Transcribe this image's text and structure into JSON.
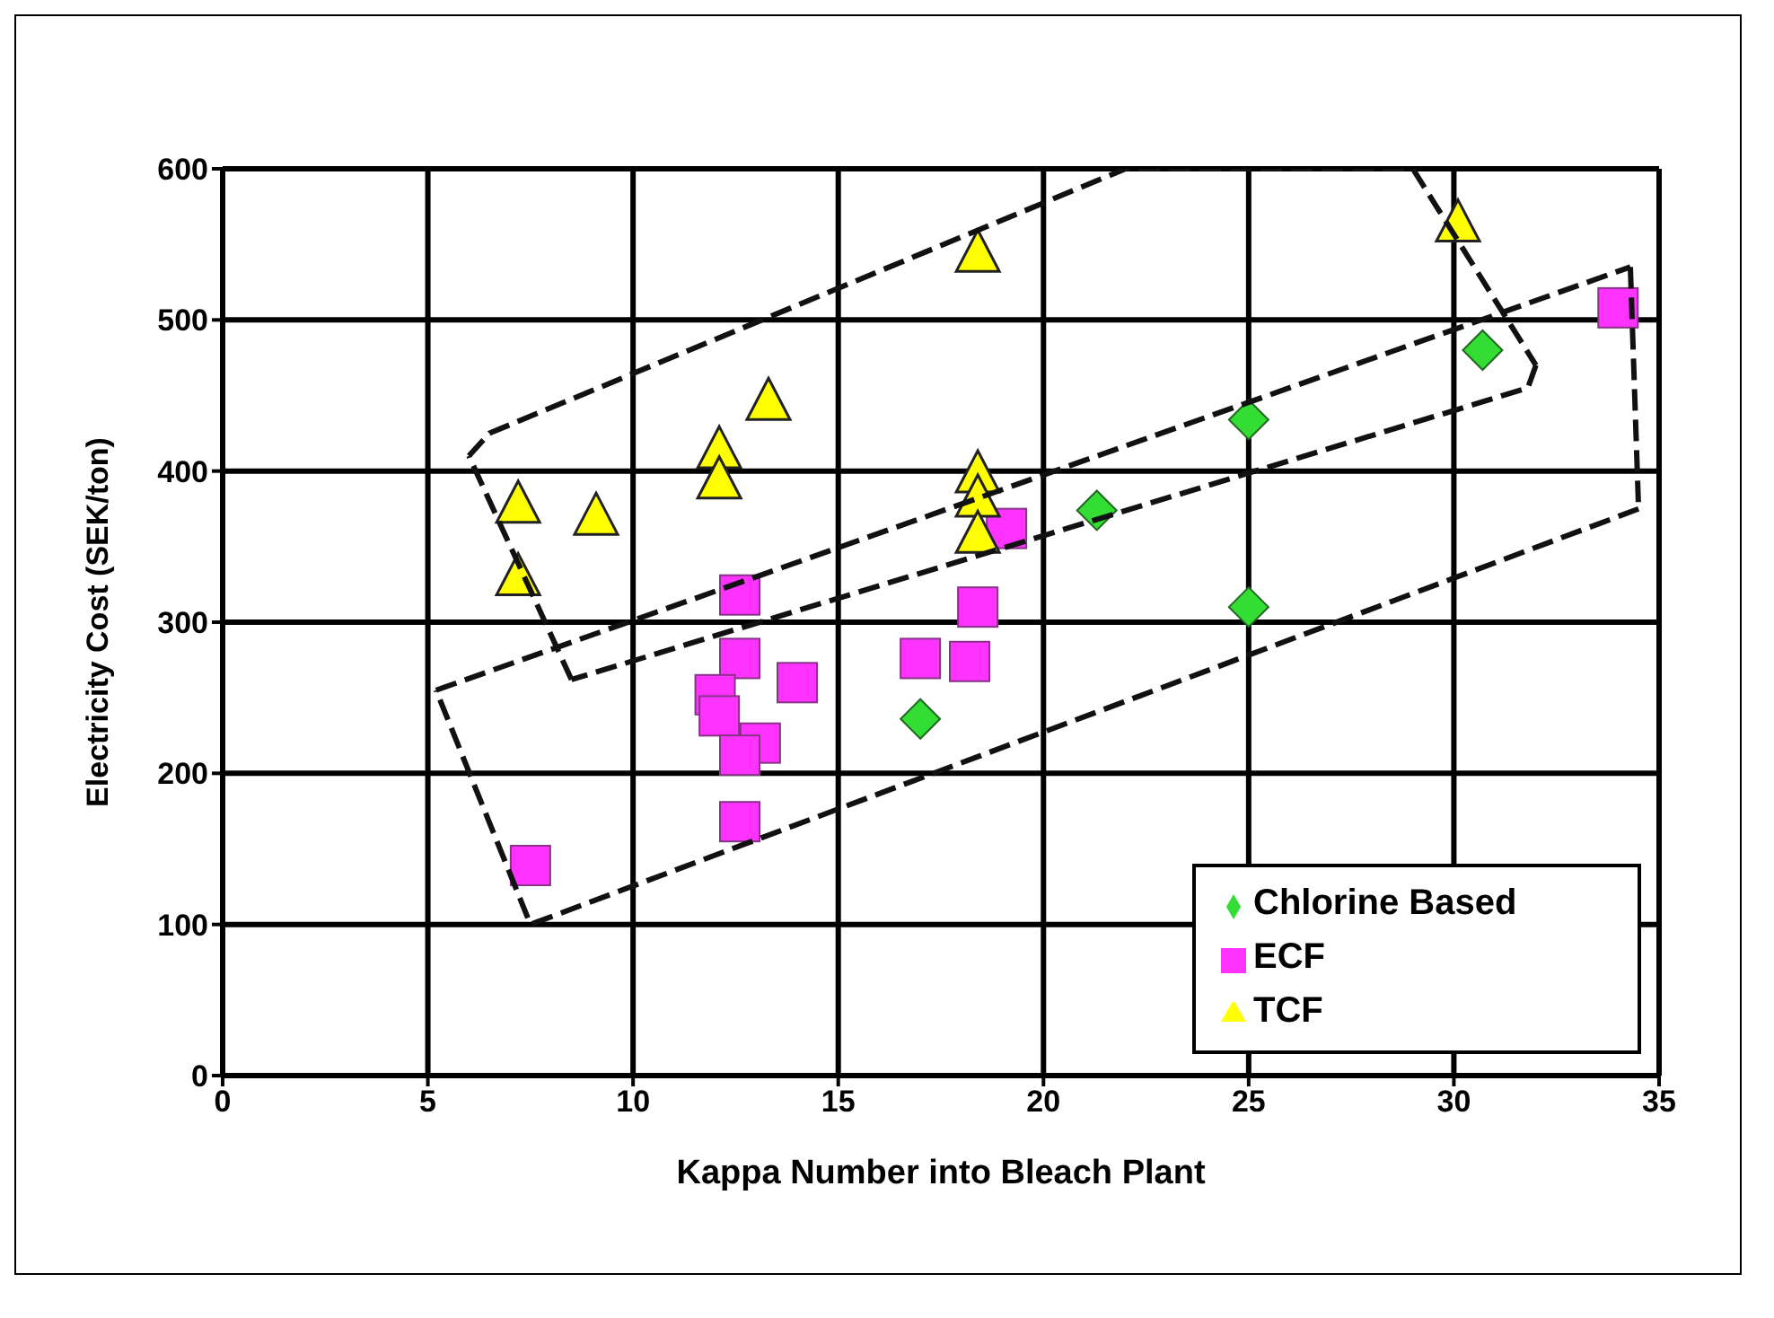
{
  "chart_data": {
    "type": "scatter",
    "xlabel": "Kappa Number into Bleach Plant",
    "ylabel": "Electricity Cost (SEK/ton)",
    "xlim": [
      0,
      35
    ],
    "xticks": [
      0,
      5,
      10,
      15,
      20,
      25,
      30,
      35
    ],
    "ylim": [
      0,
      600
    ],
    "yticks": [
      0,
      100,
      200,
      300,
      400,
      500,
      600
    ],
    "grid": true,
    "legend": "bottom right",
    "series": [
      {
        "name": "Chlorine Based",
        "color": "#33dd33",
        "marker": "diamond",
        "x": [
          17.0,
          21.3,
          25.0,
          25.0,
          30.7
        ],
        "values": [
          236,
          374,
          434,
          310,
          480
        ]
      },
      {
        "name": "ECF",
        "color": "#ff33ff",
        "marker": "square",
        "x": [
          7.5,
          12.6,
          12.6,
          12.0,
          12.1,
          13.1,
          12.6,
          14.0,
          12.6,
          17.0,
          18.2,
          18.4,
          19.1,
          34.0
        ],
        "values": [
          139,
          318,
          276,
          252,
          238,
          220,
          212,
          260,
          168,
          276,
          274,
          310,
          362,
          508
        ]
      },
      {
        "name": "TCF",
        "color": "#ffff00",
        "marker": "triangle",
        "x": [
          7.2,
          7.2,
          9.1,
          12.1,
          12.1,
          13.3,
          18.4,
          18.4,
          18.4,
          18.4,
          30.1
        ],
        "values": [
          378,
          330,
          370,
          414,
          394,
          446,
          544,
          398,
          382,
          358,
          564
        ]
      },
      {
        "type": "line",
        "color": "#111111",
        "marker": "none",
        "line_style": "dashed",
        "x": [
          5.2,
          34.3
        ],
        "values": [
          255,
          535
        ]
      },
      {
        "type": "line",
        "color": "#111111",
        "marker": "none",
        "line_style": "dashed",
        "x": [
          34.3,
          34.5
        ],
        "values": [
          535,
          375
        ]
      },
      {
        "type": "line",
        "color": "#111111",
        "marker": "none",
        "line_style": "dashed",
        "x": [
          34.5,
          7.5,
          5.2
        ],
        "values": [
          375,
          100,
          255
        ]
      },
      {
        "type": "line",
        "color": "#111111",
        "marker": "none",
        "line_style": "dashed",
        "x": [
          6.0,
          6.5,
          22,
          29,
          32
        ],
        "values": [
          410,
          425,
          600,
          600,
          470
        ]
      },
      {
        "type": "line",
        "color": "#111111",
        "marker": "none",
        "line_style": "dashed",
        "x": [
          32,
          31.8,
          8.5
        ],
        "values": [
          470,
          455,
          262
        ]
      },
      {
        "type": "line",
        "color": "#111111",
        "marker": "none",
        "line_style": "dashed",
        "x": [
          8.5,
          6.0
        ],
        "values": [
          262,
          410
        ]
      }
    ]
  }
}
